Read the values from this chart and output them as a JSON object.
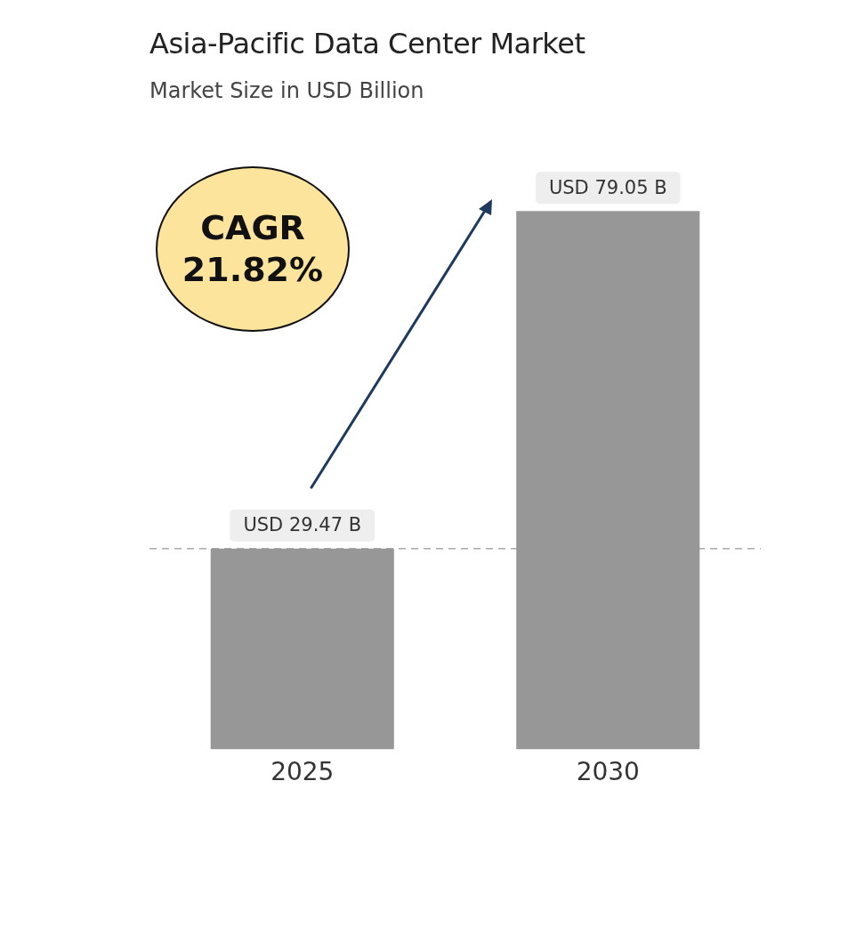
{
  "chart_data": {
    "type": "bar",
    "title": "Asia-Pacific Data Center Market",
    "subtitle": "Market Size in USD Billion",
    "categories": [
      "2025",
      "2030"
    ],
    "values": [
      29.47,
      79.05
    ],
    "value_labels": [
      "USD 29.47 B",
      "USD 79.05 B"
    ],
    "color": "#979797",
    "ref_lines": [
      {
        "axis": "y",
        "value": 29.47,
        "color": "#aaaaaa",
        "line_style": "dashed"
      }
    ],
    "annotations": [
      "CAGR 21.82%"
    ],
    "grid": false,
    "legend": false
  }
}
